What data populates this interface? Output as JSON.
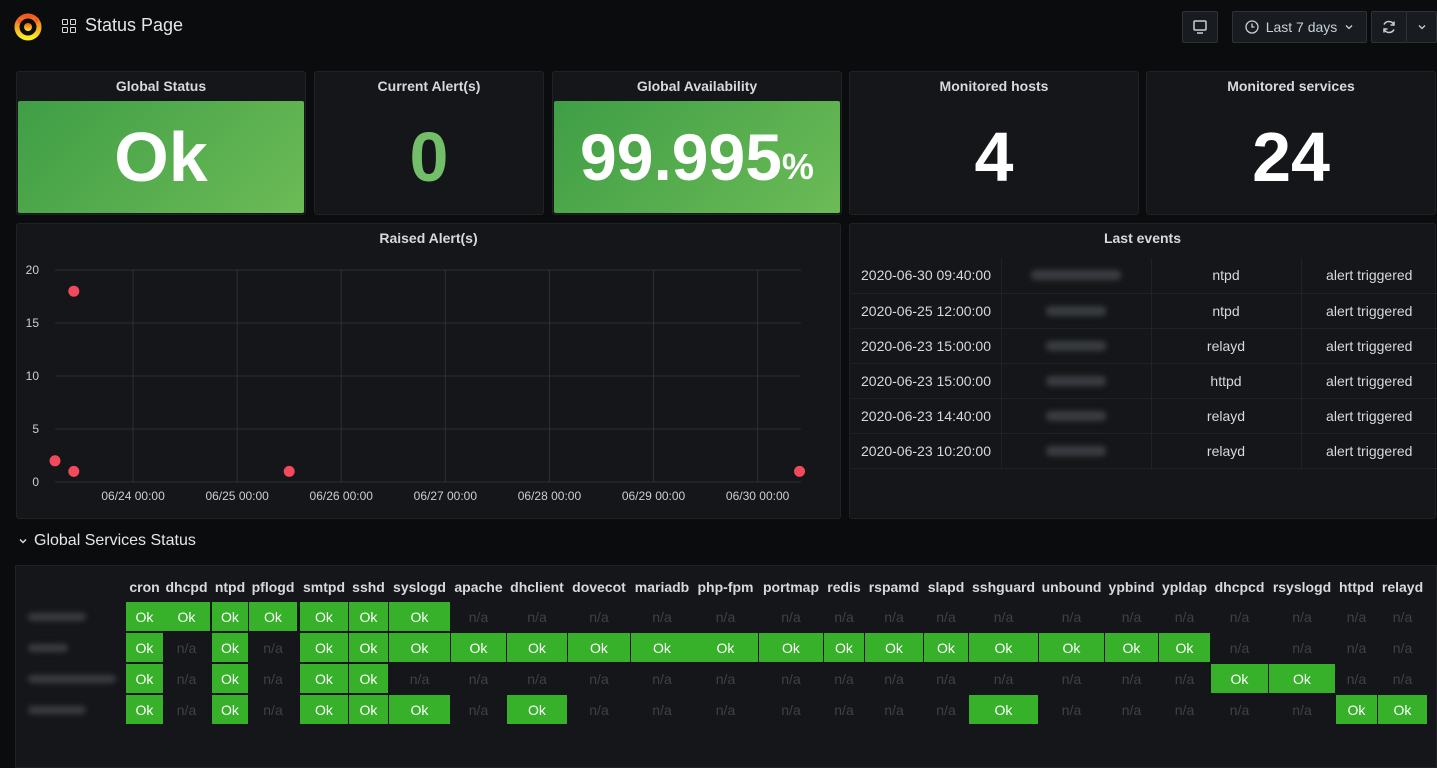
{
  "header": {
    "title": "Status Page",
    "time_range": "Last 7 days"
  },
  "stats": {
    "global_status": {
      "title": "Global Status",
      "value": "Ok"
    },
    "current_alerts": {
      "title": "Current Alert(s)",
      "value": "0"
    },
    "global_availability": {
      "title": "Global Availability",
      "value": "99.995",
      "unit": "%"
    },
    "monitored_hosts": {
      "title": "Monitored hosts",
      "value": "4"
    },
    "monitored_services": {
      "title": "Monitored services",
      "value": "24"
    }
  },
  "chart_data": {
    "type": "scatter",
    "title": "Raised Alert(s)",
    "x_ticks": [
      "06/24 00:00",
      "06/25 00:00",
      "06/26 00:00",
      "06/27 00:00",
      "06/28 00:00",
      "06/29 00:00",
      "06/30 00:00"
    ],
    "y_ticks": [
      "0",
      "5",
      "10",
      "15",
      "20"
    ],
    "ylim": [
      0,
      20
    ],
    "xlim": [
      "2020-06-23 06:00",
      "2020-06-30 10:00"
    ],
    "points": [
      {
        "x": "2020-06-23 10:20",
        "y": 18
      },
      {
        "x": "2020-06-23 06:00",
        "y": 2
      },
      {
        "x": "2020-06-23 10:20",
        "y": 1
      },
      {
        "x": "2020-06-25 12:00",
        "y": 1
      },
      {
        "x": "2020-06-30 09:40",
        "y": 1
      }
    ],
    "point_color": "#f2495c",
    "grid": true
  },
  "last_events": {
    "title": "Last events",
    "rows": [
      {
        "time": "2020-06-30 09:40:00",
        "service": "ntpd",
        "status": "alert triggered"
      },
      {
        "time": "2020-06-25 12:00:00",
        "service": "ntpd",
        "status": "alert triggered"
      },
      {
        "time": "2020-06-23 15:00:00",
        "service": "relayd",
        "status": "alert triggered"
      },
      {
        "time": "2020-06-23 15:00:00",
        "service": "httpd",
        "status": "alert triggered"
      },
      {
        "time": "2020-06-23 14:40:00",
        "service": "relayd",
        "status": "alert triggered"
      },
      {
        "time": "2020-06-23 10:20:00",
        "service": "relayd",
        "status": "alert triggered"
      }
    ]
  },
  "services": {
    "section_title": "Global Services Status",
    "columns": [
      "cron",
      "dhcpd",
      "ntpd",
      "pflogd",
      "smtpd",
      "sshd",
      "syslogd",
      "apache",
      "dhclient",
      "dovecot",
      "mariadb",
      "php-fpm",
      "portmap",
      "redis",
      "rspamd",
      "slapd",
      "sshguard",
      "unbound",
      "ypbind",
      "ypldap",
      "dhcpcd",
      "rsyslogd",
      "httpd",
      "relayd"
    ],
    "rows": [
      [
        "Ok",
        "Ok",
        "Ok",
        "Ok",
        "Ok",
        "Ok",
        "Ok",
        "n/a",
        "n/a",
        "n/a",
        "n/a",
        "n/a",
        "n/a",
        "n/a",
        "n/a",
        "n/a",
        "n/a",
        "n/a",
        "n/a",
        "n/a",
        "n/a",
        "n/a",
        "n/a",
        "n/a"
      ],
      [
        "Ok",
        "n/a",
        "Ok",
        "n/a",
        "Ok",
        "Ok",
        "Ok",
        "Ok",
        "Ok",
        "Ok",
        "Ok",
        "Ok",
        "Ok",
        "Ok",
        "Ok",
        "Ok",
        "Ok",
        "Ok",
        "Ok",
        "Ok",
        "n/a",
        "n/a",
        "n/a",
        "n/a"
      ],
      [
        "Ok",
        "n/a",
        "Ok",
        "n/a",
        "Ok",
        "Ok",
        "n/a",
        "n/a",
        "n/a",
        "n/a",
        "n/a",
        "n/a",
        "n/a",
        "n/a",
        "n/a",
        "n/a",
        "n/a",
        "n/a",
        "n/a",
        "n/a",
        "Ok",
        "Ok",
        "n/a",
        "n/a"
      ],
      [
        "Ok",
        "n/a",
        "Ok",
        "n/a",
        "Ok",
        "Ok",
        "Ok",
        "n/a",
        "Ok",
        "n/a",
        "n/a",
        "n/a",
        "n/a",
        "n/a",
        "n/a",
        "n/a",
        "Ok",
        "n/a",
        "n/a",
        "n/a",
        "n/a",
        "n/a",
        "Ok",
        "Ok"
      ]
    ],
    "ok_color": "#37b02a"
  }
}
